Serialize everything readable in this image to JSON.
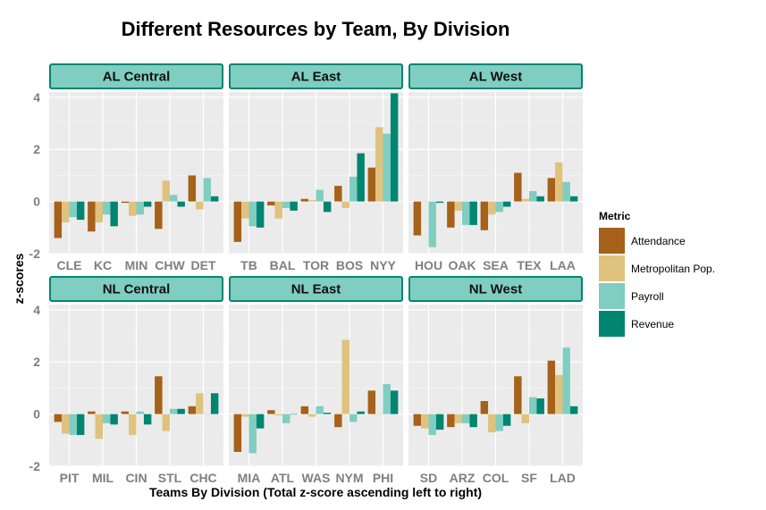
{
  "chart_data": {
    "type": "bar",
    "title": "Different Resources by Team, By Division",
    "xlabel": "Teams By Division (Total z-score ascending left to right)",
    "ylabel": "z-scores",
    "ylim": [
      -2,
      4.2
    ],
    "yticks": [
      -2,
      0,
      2,
      4
    ],
    "grid": true,
    "legend": {
      "title": "Metric",
      "position": "right",
      "entries": [
        "Attendance",
        "Metropolitan Pop.",
        "Payroll",
        "Revenue"
      ]
    },
    "colors": {
      "Attendance": "#a6611a",
      "Metropolitan Pop.": "#dfc27d",
      "Payroll": "#80cdc1",
      "Revenue": "#018571",
      "panel_bg": "#ebebeb",
      "strip_bg": "#80cdc1",
      "strip_border": "#018571"
    },
    "panels": [
      {
        "name": "AL Central",
        "teams": [
          "CLE",
          "KC",
          "MIN",
          "CHW",
          "DET"
        ],
        "series": [
          {
            "name": "Attendance",
            "values": [
              -1.4,
              -1.15,
              -0.05,
              -1.05,
              1.0
            ]
          },
          {
            "name": "Metropolitan Pop.",
            "values": [
              -0.8,
              -0.8,
              -0.55,
              0.8,
              -0.3
            ]
          },
          {
            "name": "Payroll",
            "values": [
              -0.6,
              -0.5,
              -0.5,
              0.25,
              0.9
            ]
          },
          {
            "name": "Revenue",
            "values": [
              -0.7,
              -0.95,
              -0.2,
              -0.2,
              0.2
            ]
          }
        ]
      },
      {
        "name": "AL East",
        "teams": [
          "TB",
          "BAL",
          "TOR",
          "BOS",
          "NYY"
        ],
        "series": [
          {
            "name": "Attendance",
            "values": [
              -1.55,
              -0.15,
              0.1,
              0.6,
              1.3
            ]
          },
          {
            "name": "Metropolitan Pop.",
            "values": [
              -0.65,
              -0.65,
              0.05,
              -0.25,
              2.85
            ]
          },
          {
            "name": "Payroll",
            "values": [
              -0.95,
              -0.25,
              0.45,
              0.95,
              2.6
            ]
          },
          {
            "name": "Revenue",
            "values": [
              -1.0,
              -0.35,
              -0.4,
              1.85,
              4.15
            ]
          }
        ]
      },
      {
        "name": "AL West",
        "teams": [
          "HOU",
          "OAK",
          "SEA",
          "TEX",
          "LAA"
        ],
        "series": [
          {
            "name": "Attendance",
            "values": [
              -1.3,
              -1.0,
              -1.1,
              1.1,
              0.9
            ]
          },
          {
            "name": "Metropolitan Pop.",
            "values": [
              0.0,
              -0.35,
              -0.5,
              0.1,
              1.5
            ]
          },
          {
            "name": "Payroll",
            "values": [
              -1.75,
              -0.9,
              -0.4,
              0.4,
              0.75
            ]
          },
          {
            "name": "Revenue",
            "values": [
              -0.05,
              -0.9,
              -0.2,
              0.2,
              0.2
            ]
          }
        ]
      },
      {
        "name": "NL Central",
        "teams": [
          "PIT",
          "MIL",
          "CIN",
          "STL",
          "CHC"
        ],
        "series": [
          {
            "name": "Attendance",
            "values": [
              -0.3,
              0.1,
              0.1,
              1.45,
              0.3
            ]
          },
          {
            "name": "Metropolitan Pop.",
            "values": [
              -0.75,
              -0.95,
              -0.8,
              -0.65,
              0.8
            ]
          },
          {
            "name": "Payroll",
            "values": [
              -0.8,
              -0.35,
              0.1,
              0.2,
              0.0
            ]
          },
          {
            "name": "Revenue",
            "values": [
              -0.8,
              -0.4,
              -0.4,
              0.2,
              0.8
            ]
          }
        ]
      },
      {
        "name": "NL East",
        "teams": [
          "MIA",
          "ATL",
          "WAS",
          "NYM",
          "PHI"
        ],
        "series": [
          {
            "name": "Attendance",
            "values": [
              -1.45,
              0.15,
              0.3,
              -0.5,
              0.9
            ]
          },
          {
            "name": "Metropolitan Pop.",
            "values": [
              -0.1,
              -0.05,
              -0.1,
              2.85,
              0.0
            ]
          },
          {
            "name": "Payroll",
            "values": [
              -1.5,
              -0.35,
              0.3,
              -0.3,
              1.15
            ]
          },
          {
            "name": "Revenue",
            "values": [
              -0.55,
              0.0,
              0.05,
              0.1,
              0.9
            ]
          }
        ]
      },
      {
        "name": "NL West",
        "teams": [
          "SD",
          "ARZ",
          "COL",
          "SF",
          "LAD"
        ],
        "series": [
          {
            "name": "Attendance",
            "values": [
              -0.45,
              -0.5,
              0.5,
              1.45,
              2.05
            ]
          },
          {
            "name": "Metropolitan Pop.",
            "values": [
              -0.55,
              -0.35,
              -0.7,
              -0.35,
              1.5
            ]
          },
          {
            "name": "Payroll",
            "values": [
              -0.8,
              -0.35,
              -0.65,
              0.65,
              2.55
            ]
          },
          {
            "name": "Revenue",
            "values": [
              -0.6,
              -0.5,
              -0.45,
              0.6,
              0.3
            ]
          }
        ]
      }
    ]
  }
}
